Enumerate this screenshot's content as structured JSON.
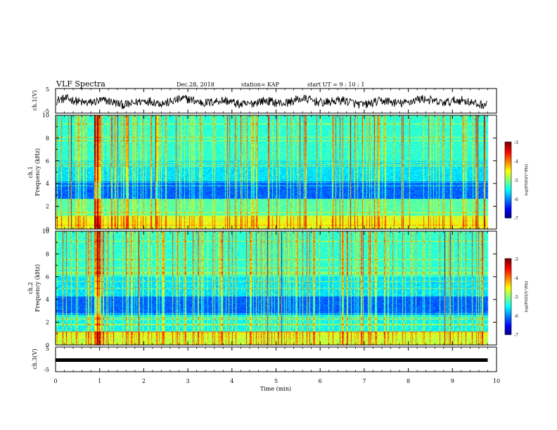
{
  "header": {
    "title": "VLF Spectra",
    "date": "Dec.28, 2018",
    "station": "station= KAP",
    "start": "start  UT =   9 : 10 : 1"
  },
  "chart_data": {
    "type": "heatmap",
    "xlabel": "Time  (min)",
    "xlim": [
      0,
      10
    ],
    "xticks": [
      "0",
      "1",
      "2",
      "3",
      "4",
      "5",
      "6",
      "7",
      "8",
      "9",
      "10"
    ],
    "data_end_min": 9.8,
    "panels": [
      {
        "id": "ch1-waveform",
        "type": "line",
        "ylabel": "ch.1(V)",
        "ylim": [
          -5,
          5
        ],
        "yticks": [
          "5",
          "-5"
        ],
        "description_values": {
          "center_V": -0.4,
          "amplitude_V": 1.8
        }
      },
      {
        "id": "ch1-spectrogram",
        "type": "heatmap",
        "ylabel_top": "ch.1",
        "ylabel": "Frequency  (kHz)",
        "ylim": [
          0,
          10
        ],
        "yticks": [
          "0",
          "2",
          "4",
          "6",
          "8",
          "10"
        ],
        "colorbar": {
          "label": "log(PSD)(V²/Hz)",
          "range": [
            -7,
            -3
          ],
          "ticks": [
            "-3",
            "-4",
            "-5",
            "-6",
            "-7"
          ]
        }
      },
      {
        "id": "ch2-spectrogram",
        "type": "heatmap",
        "ylabel_top": "ch.2",
        "ylabel": "Frequency  (kHz)",
        "ylim": [
          0,
          10
        ],
        "yticks": [
          "0",
          "2",
          "4",
          "6",
          "8",
          "10"
        ],
        "colorbar": {
          "label": "log(PSD)(V²/Hz)",
          "range": [
            -7,
            -3
          ],
          "ticks": [
            "-3",
            "-4",
            "-5",
            "-6",
            "-7"
          ]
        }
      },
      {
        "id": "ch3-waveform",
        "type": "line",
        "ylabel": "ch.3(V)",
        "ylim": [
          -5,
          5
        ],
        "yticks": [
          "5",
          "-5"
        ],
        "description_values": {
          "constant_V": -0.3
        }
      }
    ],
    "colors": {
      "low": "#00008b",
      "mid": "#00ff80",
      "high": "#8b0000"
    }
  }
}
